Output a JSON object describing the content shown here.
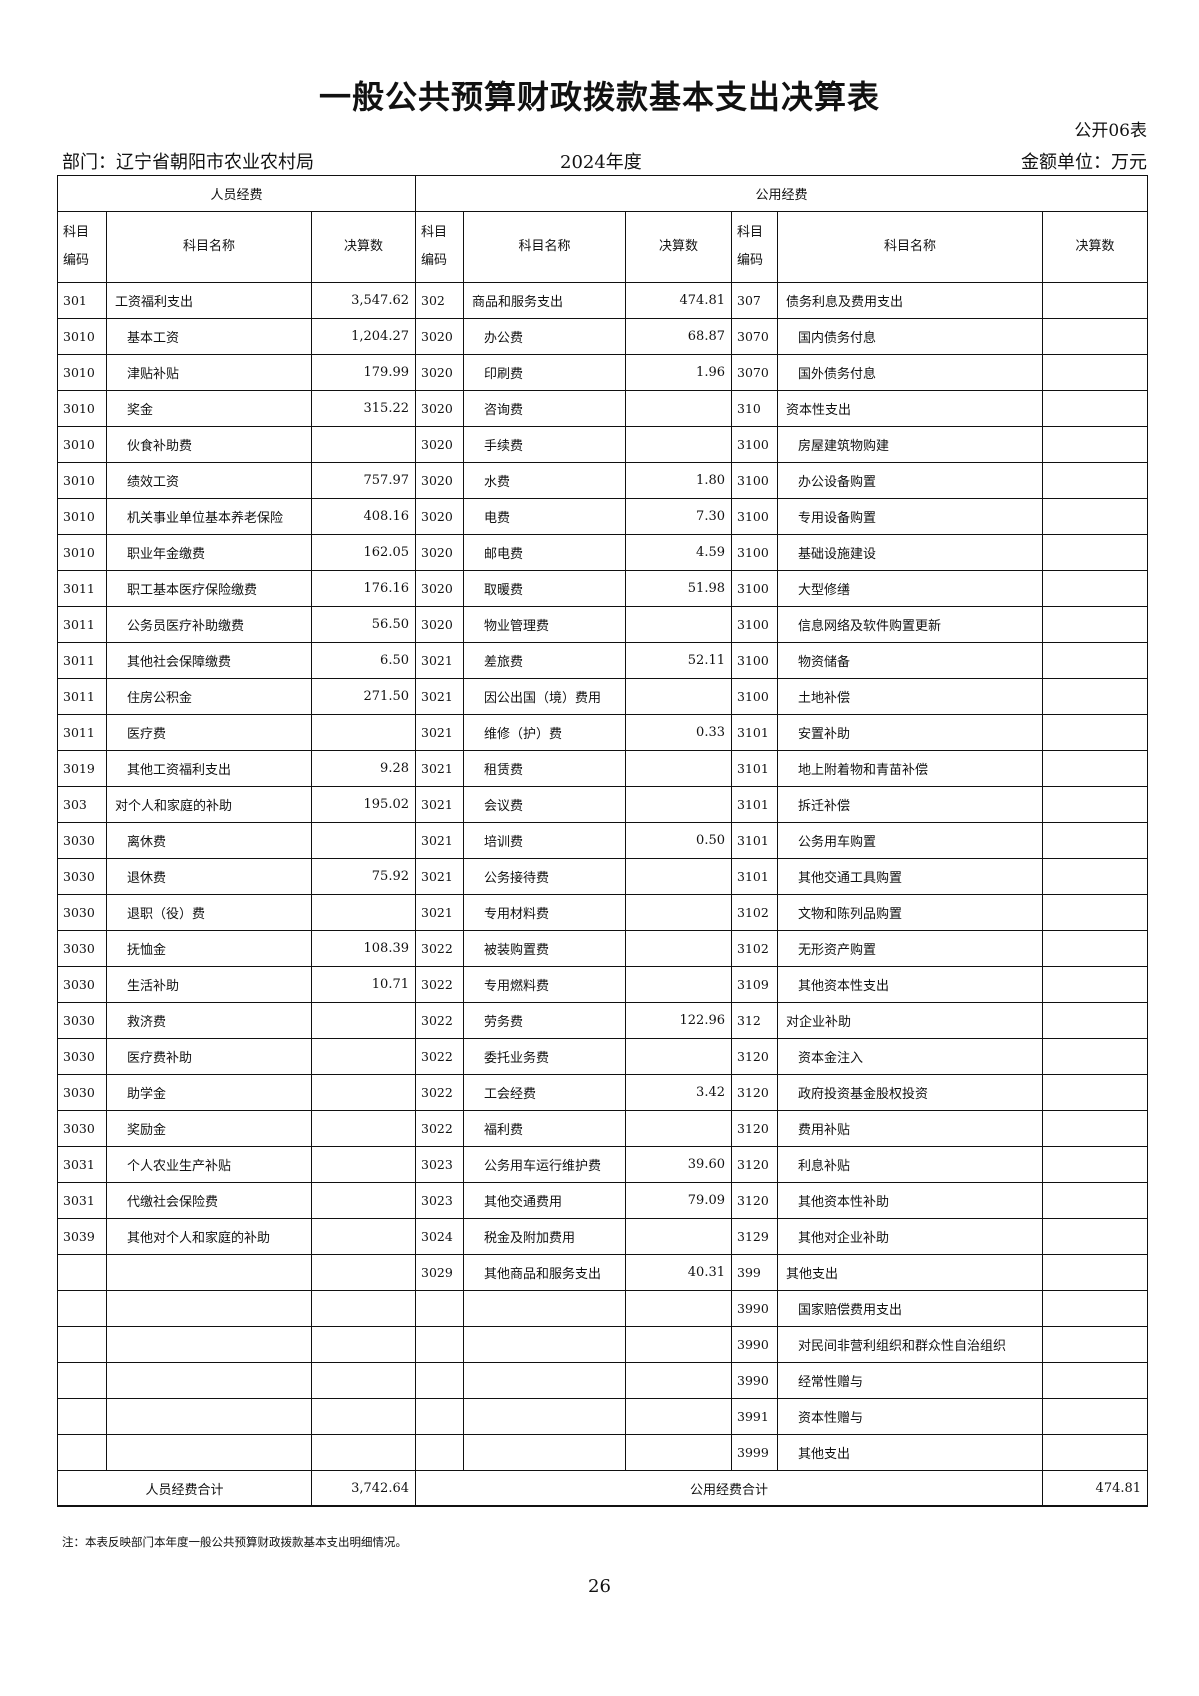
{
  "title": "一般公共预算财政拨款基本支出决算表",
  "form_no": "公开06表",
  "department": "部门：辽宁省朝阳市农业农村局",
  "year": "2024年度",
  "unit": "金额单位：万元",
  "headers": {
    "personnel": "人员经费",
    "public": "公用经费",
    "code": "科目编码",
    "name": "科目名称",
    "amount": "决算数"
  },
  "rows": [
    [
      "301",
      "工资福利支出",
      "3,547.62",
      "302",
      "商品和服务支出",
      "474.81",
      "307",
      "债务利息及费用支出",
      ""
    ],
    [
      "3010",
      "基本工资",
      "1,204.27",
      "3020",
      "办公费",
      "68.87",
      "3070",
      "国内债务付息",
      ""
    ],
    [
      "3010",
      "津贴补贴",
      "179.99",
      "3020",
      "印刷费",
      "1.96",
      "3070",
      "国外债务付息",
      ""
    ],
    [
      "3010",
      "奖金",
      "315.22",
      "3020",
      "咨询费",
      "",
      "310",
      "资本性支出",
      ""
    ],
    [
      "3010",
      "伙食补助费",
      "",
      "3020",
      "手续费",
      "",
      "3100",
      "房屋建筑物购建",
      ""
    ],
    [
      "3010",
      "绩效工资",
      "757.97",
      "3020",
      "水费",
      "1.80",
      "3100",
      "办公设备购置",
      ""
    ],
    [
      "3010",
      "机关事业单位基本养老保险",
      "408.16",
      "3020",
      "电费",
      "7.30",
      "3100",
      "专用设备购置",
      ""
    ],
    [
      "3010",
      "职业年金缴费",
      "162.05",
      "3020",
      "邮电费",
      "4.59",
      "3100",
      "基础设施建设",
      ""
    ],
    [
      "3011",
      "职工基本医疗保险缴费",
      "176.16",
      "3020",
      "取暖费",
      "51.98",
      "3100",
      "大型修缮",
      ""
    ],
    [
      "3011",
      "公务员医疗补助缴费",
      "56.50",
      "3020",
      "物业管理费",
      "",
      "3100",
      "信息网络及软件购置更新",
      ""
    ],
    [
      "3011",
      "其他社会保障缴费",
      "6.50",
      "3021",
      "差旅费",
      "52.11",
      "3100",
      "物资储备",
      ""
    ],
    [
      "3011",
      "住房公积金",
      "271.50",
      "3021",
      "因公出国（境）费用",
      "",
      "3100",
      "土地补偿",
      ""
    ],
    [
      "3011",
      "医疗费",
      "",
      "3021",
      "维修（护）费",
      "0.33",
      "3101",
      "安置补助",
      ""
    ],
    [
      "3019",
      "其他工资福利支出",
      "9.28",
      "3021",
      "租赁费",
      "",
      "3101",
      "地上附着物和青苗补偿",
      ""
    ],
    [
      "303",
      "对个人和家庭的补助",
      "195.02",
      "3021",
      "会议费",
      "",
      "3101",
      "拆迁补偿",
      ""
    ],
    [
      "3030",
      "离休费",
      "",
      "3021",
      "培训费",
      "0.50",
      "3101",
      "公务用车购置",
      ""
    ],
    [
      "3030",
      "退休费",
      "75.92",
      "3021",
      "公务接待费",
      "",
      "3101",
      "其他交通工具购置",
      ""
    ],
    [
      "3030",
      "退职（役）费",
      "",
      "3021",
      "专用材料费",
      "",
      "3102",
      "文物和陈列品购置",
      ""
    ],
    [
      "3030",
      "抚恤金",
      "108.39",
      "3022",
      "被装购置费",
      "",
      "3102",
      "无形资产购置",
      ""
    ],
    [
      "3030",
      "生活补助",
      "10.71",
      "3022",
      "专用燃料费",
      "",
      "3109",
      "其他资本性支出",
      ""
    ],
    [
      "3030",
      "救济费",
      "",
      "3022",
      "劳务费",
      "122.96",
      "312",
      "对企业补助",
      ""
    ],
    [
      "3030",
      "医疗费补助",
      "",
      "3022",
      "委托业务费",
      "",
      "3120",
      "资本金注入",
      ""
    ],
    [
      "3030",
      "助学金",
      "",
      "3022",
      "工会经费",
      "3.42",
      "3120",
      "政府投资基金股权投资",
      ""
    ],
    [
      "3030",
      "奖励金",
      "",
      "3022",
      "福利费",
      "",
      "3120",
      "费用补贴",
      ""
    ],
    [
      "3031",
      "个人农业生产补贴",
      "",
      "3023",
      "公务用车运行维护费",
      "39.60",
      "3120",
      "利息补贴",
      ""
    ],
    [
      "3031",
      "代缴社会保险费",
      "",
      "3023",
      "其他交通费用",
      "79.09",
      "3120",
      "其他资本性补助",
      ""
    ],
    [
      "3039",
      "其他对个人和家庭的补助",
      "",
      "3024",
      "税金及附加费用",
      "",
      "3129",
      "其他对企业补助",
      ""
    ],
    [
      "",
      "",
      "",
      "3029",
      "其他商品和服务支出",
      "40.31",
      "399",
      "其他支出",
      ""
    ],
    [
      "",
      "",
      "",
      "",
      "",
      "",
      "3990",
      "国家赔偿费用支出",
      ""
    ],
    [
      "",
      "",
      "",
      "",
      "",
      "",
      "3990",
      "对民间非营利组织和群众性自治组织",
      ""
    ],
    [
      "",
      "",
      "",
      "",
      "",
      "",
      "3990",
      "经常性赠与",
      ""
    ],
    [
      "",
      "",
      "",
      "",
      "",
      "",
      "3991",
      "资本性赠与",
      ""
    ],
    [
      "",
      "",
      "",
      "",
      "",
      "",
      "3999",
      "其他支出",
      ""
    ]
  ],
  "totals": {
    "personnel_label": "人员经费合计",
    "personnel_value": "3,742.64",
    "public_label": "公用经费合计",
    "public_value": "474.81"
  },
  "note": "注：本表反映部门本年度一般公共预算财政拨款基本支出明细情况。",
  "page_number": "26"
}
